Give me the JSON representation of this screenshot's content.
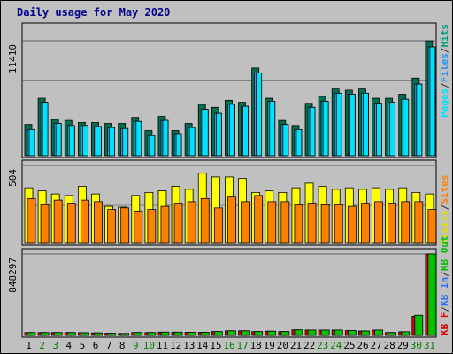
{
  "title": "Daily usage for May 2020",
  "legends": {
    "top": [
      {
        "label": "Pages",
        "color": "#00e0ff"
      },
      {
        "label": "/",
        "color": "#303030"
      },
      {
        "label": "Files",
        "color": "#1e90ff"
      },
      {
        "label": "/",
        "color": "#303030"
      },
      {
        "label": "Hits",
        "color": "#00a080"
      }
    ],
    "mid": [
      {
        "label": "Visits",
        "color": "#e0e000"
      },
      {
        "label": "/",
        "color": "#303030"
      },
      {
        "label": "Sites",
        "color": "#ff8000"
      }
    ],
    "bot": [
      {
        "label": "KB F",
        "color": "#e00000"
      },
      {
        "label": "/",
        "color": "#303030"
      },
      {
        "label": "KB In",
        "color": "#3070ff"
      },
      {
        "label": "/",
        "color": "#303030"
      },
      {
        "label": "KB Out",
        "color": "#00c000"
      }
    ]
  },
  "colors": {
    "hits": "#006e50",
    "files": "#00b8e0",
    "pages": "#00e0ff",
    "visits": "#ffff00",
    "sites": "#ff8000",
    "kbf": "#e00000",
    "kbout": "#00c000",
    "weekend_label": "#008000",
    "title": "#00008b"
  },
  "chart_data": [
    {
      "type": "bar",
      "title": "Daily usage for May 2020",
      "ylabel_max": "11410",
      "ylim": [
        0,
        11410
      ],
      "categories": [
        "1",
        "2",
        "3",
        "4",
        "5",
        "6",
        "7",
        "8",
        "9",
        "10",
        "11",
        "12",
        "13",
        "14",
        "15",
        "16",
        "17",
        "18",
        "19",
        "20",
        "21",
        "22",
        "23",
        "24",
        "25",
        "26",
        "27",
        "28",
        "29",
        "30",
        "31"
      ],
      "weekend_days": [
        "2",
        "3",
        "9",
        "10",
        "16",
        "17",
        "23",
        "24",
        "30",
        "31"
      ],
      "series": [
        {
          "name": "Hits",
          "values": [
            3100,
            5700,
            3600,
            3500,
            3300,
            3300,
            3200,
            3200,
            3800,
            2500,
            3900,
            2500,
            3200,
            5100,
            4800,
            5500,
            5300,
            8700,
            5700,
            3500,
            3000,
            5200,
            5900,
            6700,
            6500,
            6700,
            5700,
            5700,
            6100,
            7700,
            11400
          ]
        },
        {
          "name": "Files",
          "values": [
            2600,
            5300,
            3200,
            3000,
            3000,
            2900,
            2800,
            2700,
            3400,
            2000,
            3500,
            2200,
            2800,
            4600,
            4200,
            5100,
            4900,
            8200,
            5400,
            3100,
            2600,
            4800,
            5400,
            6200,
            6100,
            6200,
            5200,
            5300,
            5600,
            7100,
            10800
          ]
        },
        {
          "name": "Pages",
          "values": [
            2600,
            5300,
            3200,
            3000,
            3000,
            2900,
            2800,
            2700,
            3400,
            2000,
            3500,
            2200,
            2800,
            4600,
            4200,
            5100,
            4900,
            8200,
            5400,
            3100,
            2600,
            4800,
            5400,
            6200,
            6100,
            6200,
            5200,
            5300,
            5600,
            7100,
            10800
          ]
        }
      ]
    },
    {
      "type": "bar",
      "ylabel_max": "504",
      "ylim": [
        0,
        504
      ],
      "series": [
        {
          "name": "Visits",
          "values": [
            360,
            340,
            320,
            310,
            370,
            320,
            240,
            235,
            310,
            330,
            340,
            370,
            350,
            454,
            430,
            430,
            420,
            330,
            340,
            330,
            360,
            390,
            370,
            350,
            360,
            350,
            360,
            350,
            360,
            330,
            320
          ]
        },
        {
          "name": "Sites",
          "values": [
            290,
            250,
            280,
            260,
            280,
            270,
            220,
            230,
            210,
            220,
            240,
            260,
            270,
            290,
            230,
            300,
            270,
            310,
            270,
            270,
            250,
            260,
            250,
            250,
            240,
            260,
            270,
            260,
            270,
            270,
            220
          ]
        }
      ]
    },
    {
      "type": "bar",
      "ylabel_max": "848297",
      "ylim": [
        0,
        848297
      ],
      "series": [
        {
          "name": "KB F",
          "values": [
            30000,
            30000,
            30000,
            30000,
            28000,
            26000,
            22000,
            20000,
            30000,
            30000,
            34000,
            34000,
            32000,
            32000,
            40000,
            48000,
            48000,
            40000,
            44000,
            40000,
            58000,
            56000,
            56000,
            56000,
            50000,
            46000,
            56000,
            30000,
            38000,
            200000,
            848297
          ]
        },
        {
          "name": "KB Out",
          "values": [
            30000,
            30000,
            30000,
            30000,
            28000,
            26000,
            22000,
            20000,
            30000,
            30000,
            34000,
            34000,
            32000,
            32000,
            40000,
            48000,
            48000,
            40000,
            44000,
            40000,
            58000,
            56000,
            56000,
            56000,
            50000,
            46000,
            56000,
            30000,
            38000,
            210000,
            848297
          ]
        }
      ]
    }
  ]
}
